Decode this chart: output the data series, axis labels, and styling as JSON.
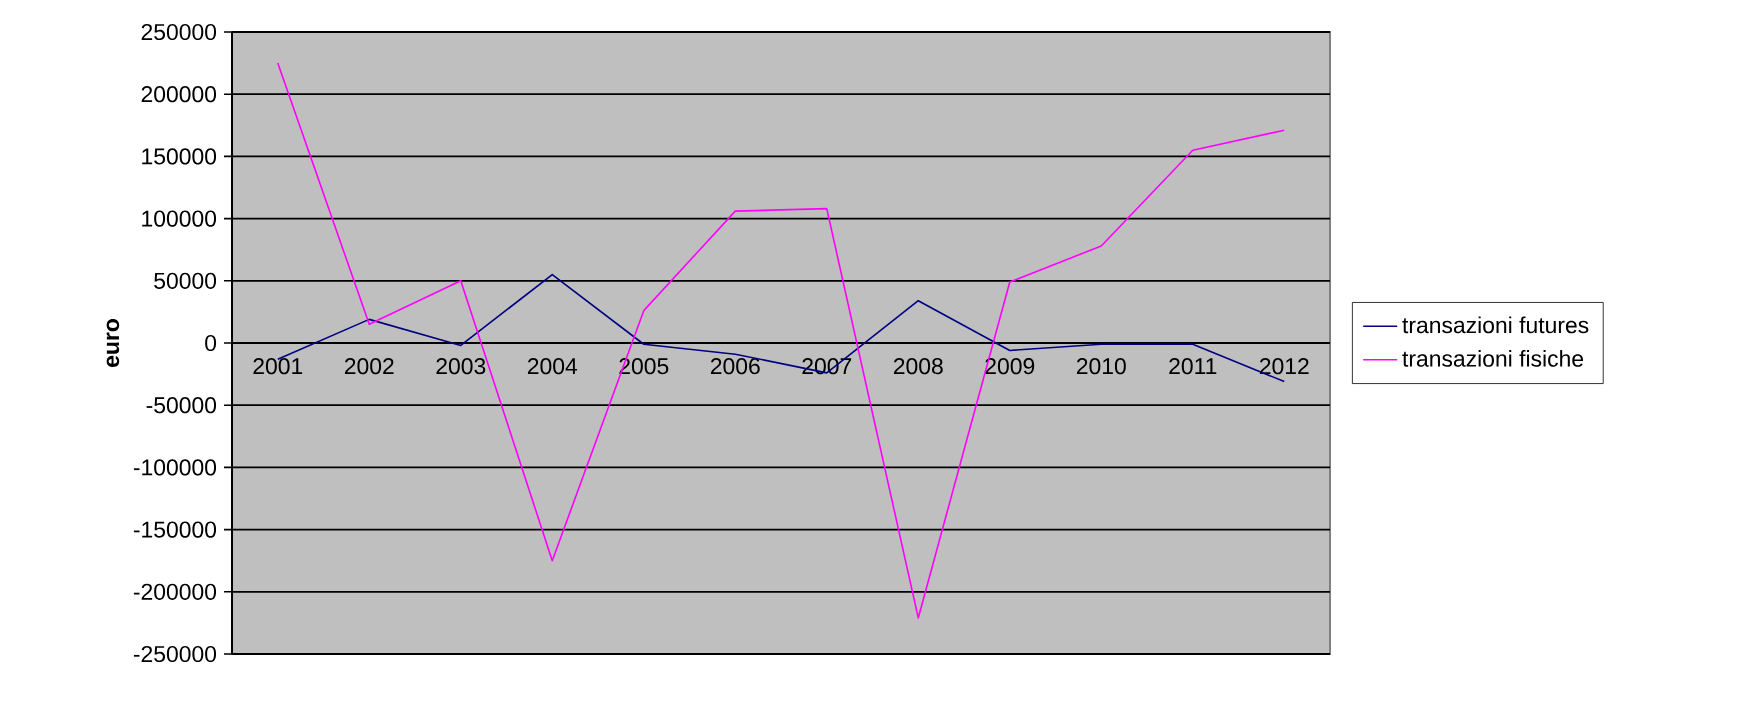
{
  "chart_data": {
    "type": "line",
    "ylabel": "euro",
    "categories": [
      "2001",
      "2002",
      "2003",
      "2004",
      "2005",
      "2006",
      "2007",
      "2008",
      "2009",
      "2010",
      "2011",
      "2012"
    ],
    "series": [
      {
        "name": "transazioni futures",
        "color": "#000080",
        "values": [
          -13000,
          19000,
          -2000,
          55000,
          -1000,
          -9000,
          -24000,
          34000,
          -6000,
          -1000,
          -1000,
          -31000
        ]
      },
      {
        "name": "transazioni fisiche",
        "color": "#ff00ff",
        "values": [
          225000,
          15000,
          50000,
          -175000,
          26000,
          106000,
          108000,
          -221000,
          49000,
          78000,
          155000,
          171000
        ]
      }
    ],
    "ylim": [
      -250000,
      250000
    ],
    "yticks": [
      -250000,
      -200000,
      -150000,
      -100000,
      -50000,
      0,
      50000,
      100000,
      150000,
      200000,
      250000
    ],
    "grid": "y",
    "legend": "right",
    "marker": "none",
    "line_style": "solid"
  }
}
